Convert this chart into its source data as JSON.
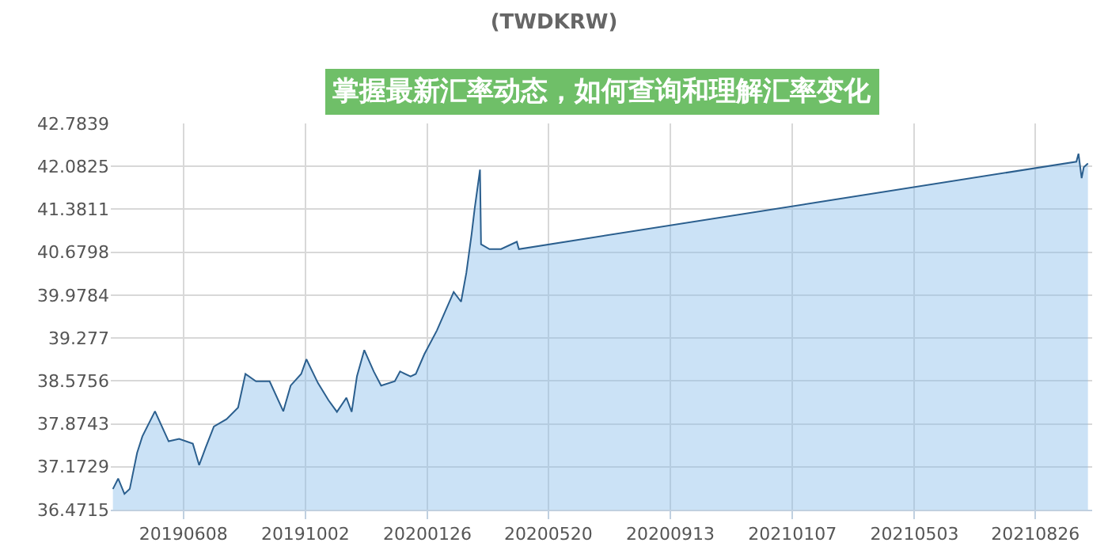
{
  "chart_data": {
    "type": "area",
    "title": "(TWDKRW)",
    "annotations": [
      "掌握最新汇率动态，如何查询和理解汇率变化"
    ],
    "x": [
      "2019-04-02",
      "2019-04-07",
      "2019-04-13",
      "2019-04-18",
      "2019-04-25",
      "2019-04-30",
      "2019-05-12",
      "2019-05-25",
      "2019-06-04",
      "2019-06-17",
      "2019-06-23",
      "2019-06-29",
      "2019-07-07",
      "2019-07-19",
      "2019-07-30",
      "2019-08-06",
      "2019-08-16",
      "2019-08-29",
      "2019-09-11",
      "2019-09-18",
      "2019-09-28",
      "2019-10-03",
      "2019-10-14",
      "2019-10-24",
      "2019-11-01",
      "2019-11-10",
      "2019-11-15",
      "2019-11-20",
      "2019-11-27",
      "2019-12-06",
      "2019-12-13",
      "2019-12-26",
      "2019-12-31",
      "2020-01-10",
      "2020-01-15",
      "2020-01-23",
      "2020-02-04",
      "2020-02-20",
      "2020-02-27",
      "2020-03-03",
      "2020-03-08",
      "2020-03-11",
      "2020-03-16",
      "2020-03-17",
      "2020-03-25",
      "2020-04-05",
      "2020-04-20",
      "2020-04-22",
      "2021-10-04",
      "2021-10-06",
      "2021-10-09",
      "2021-10-11",
      "2021-10-15"
    ],
    "series": [
      {
        "color": "#2b5f8e",
        "values": [
          36.81,
          36.98,
          36.73,
          36.81,
          37.4,
          37.67,
          38.08,
          37.59,
          37.63,
          37.55,
          37.2,
          37.48,
          37.83,
          37.95,
          38.14,
          38.69,
          38.57,
          38.57,
          38.08,
          38.5,
          38.69,
          38.93,
          38.54,
          38.26,
          38.07,
          38.3,
          38.07,
          38.65,
          39.08,
          38.73,
          38.5,
          38.57,
          38.73,
          38.65,
          38.69,
          39.01,
          39.4,
          40.03,
          39.87,
          40.34,
          40.97,
          41.4,
          42.03,
          40.81,
          40.73,
          40.73,
          40.85,
          40.73,
          42.16,
          42.29,
          41.89,
          42.07,
          42.13
        ]
      }
    ],
    "xlim": [
      "2019-03-31",
      "2021-10-19"
    ],
    "xticks": [
      {
        "value": "2019-06-08",
        "label": "20190608"
      },
      {
        "value": "2019-10-02",
        "label": "20191002"
      },
      {
        "value": "2020-01-26",
        "label": "20200126"
      },
      {
        "value": "2020-05-20",
        "label": "20200520"
      },
      {
        "value": "2020-09-13",
        "label": "20200913"
      },
      {
        "value": "2021-01-07",
        "label": "20210107"
      },
      {
        "value": "2021-05-03",
        "label": "20210503"
      },
      {
        "value": "2021-08-26",
        "label": "20210826"
      }
    ],
    "ylim": [
      36.4715,
      42.7839
    ],
    "yticks": [
      36.4715,
      37.1729,
      37.8743,
      38.5756,
      39.277,
      39.9784,
      40.6798,
      41.3811,
      42.0825,
      42.7839
    ],
    "grid": true
  }
}
